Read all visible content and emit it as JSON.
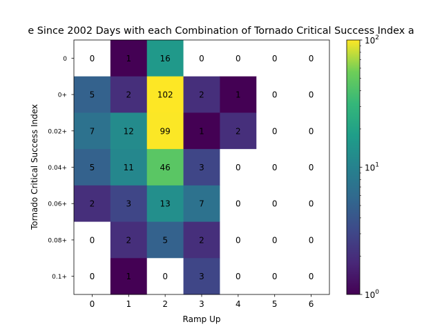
{
  "chart_data": {
    "type": "heatmap",
    "title": "e Since 2002 Days with each Combination of Tornado Critical Success Index a",
    "xlabel": "Ramp Up",
    "ylabel": "Tornado Critical Success Index",
    "x_categories": [
      "0",
      "1",
      "2",
      "3",
      "4",
      "5",
      "6"
    ],
    "y_categories": [
      "0",
      "0+",
      "0.02+",
      "0.04+",
      "0.06+",
      "0.08+",
      "0.1+"
    ],
    "values": [
      [
        0,
        1,
        16,
        0,
        0,
        0,
        0
      ],
      [
        5,
        2,
        102,
        2,
        1,
        0,
        0
      ],
      [
        7,
        12,
        99,
        1,
        2,
        0,
        0
      ],
      [
        5,
        11,
        46,
        3,
        0,
        0,
        0
      ],
      [
        2,
        3,
        13,
        7,
        0,
        0,
        0
      ],
      [
        0,
        2,
        5,
        2,
        0,
        0,
        0
      ],
      [
        0,
        1,
        0,
        3,
        0,
        0,
        0
      ]
    ],
    "color_scale": "log",
    "colormap": "viridis",
    "zero_color": "#ffffff",
    "colorbar": {
      "range": [
        1,
        100
      ],
      "ticks": [
        {
          "value": 1,
          "base": "10",
          "exp": "0"
        },
        {
          "value": 10,
          "base": "10",
          "exp": "1"
        },
        {
          "value": 100,
          "base": "10",
          "exp": "2"
        }
      ]
    },
    "grid": false
  }
}
